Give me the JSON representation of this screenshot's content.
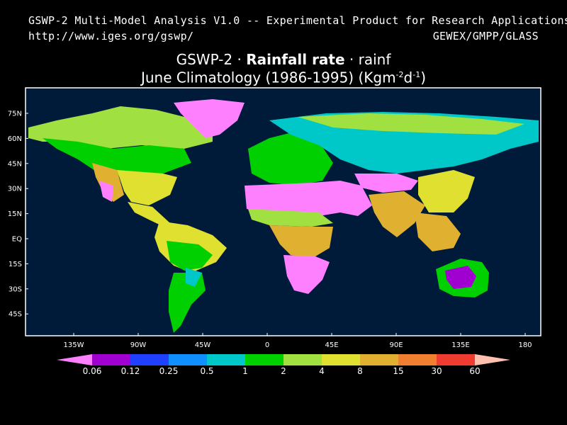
{
  "header": {
    "line1": "GSWP-2 Multi-Model Analysis V1.0 -- Experimental Product for Research Applications",
    "url": "http://www.iges.org/gswp/",
    "org": "GEWEX/GMPP/GLASS"
  },
  "title": {
    "prefix": "GSWP-2 · ",
    "bold": "Rainfall rate",
    "suffix": " · rainf",
    "line2_pre": "June Climatology (1986-1995) (Kgm",
    "line2_sup1": "-2",
    "line2_mid": "d",
    "line2_sup2": "-1",
    "line2_post": ")"
  },
  "map": {
    "ocean_color": "#001a3a",
    "lat_labels": [
      "75N",
      "60N",
      "45N",
      "30N",
      "15N",
      "EQ",
      "15S",
      "30S",
      "45S"
    ],
    "lon_labels": [
      "135W",
      "90W",
      "45W",
      "0",
      "45E",
      "90E",
      "135E",
      "180"
    ]
  },
  "legend": {
    "colors": [
      "#ff80ff",
      "#a000d0",
      "#2040ff",
      "#1090ff",
      "#00c8c8",
      "#00d000",
      "#a0e040",
      "#e0e030",
      "#e0b030",
      "#f08030",
      "#f03c30",
      "#ffc0b0"
    ],
    "labels": [
      "0.06",
      "0.12",
      "0.25",
      "0.5",
      "1",
      "2",
      "4",
      "8",
      "15",
      "30",
      "60"
    ]
  }
}
